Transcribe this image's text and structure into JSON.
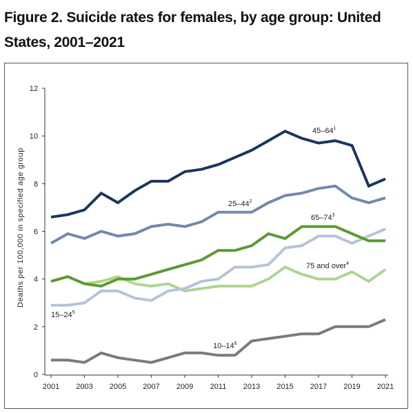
{
  "chart_data": {
    "type": "line",
    "title": "Figure 2. Suicide rates for females, by age group: United States, 2001–2021",
    "ylabel": "Deaths per 100,000 in specified age group",
    "xlabel": "",
    "xlim": [
      2001,
      2021
    ],
    "ylim": [
      0,
      12
    ],
    "x": [
      2001,
      2002,
      2003,
      2004,
      2005,
      2006,
      2007,
      2008,
      2009,
      2010,
      2011,
      2012,
      2013,
      2014,
      2015,
      2016,
      2017,
      2018,
      2019,
      2020,
      2021
    ],
    "x_ticks": [
      "2001",
      "2003",
      "2005",
      "2007",
      "2009",
      "2011",
      "2013",
      "2015",
      "2017",
      "2019",
      "2021"
    ],
    "y_ticks": [
      "0",
      "2",
      "4",
      "6",
      "8",
      "10",
      "12"
    ],
    "grid": false,
    "legend": "inline labels",
    "series": [
      {
        "name": "45–64",
        "footnote": "1",
        "color": "#1b365d",
        "values": [
          6.6,
          6.7,
          6.9,
          7.6,
          7.2,
          7.7,
          8.1,
          8.1,
          8.5,
          8.6,
          8.8,
          9.1,
          9.4,
          9.8,
          10.2,
          9.9,
          9.7,
          9.8,
          9.6,
          7.9,
          8.2
        ]
      },
      {
        "name": "25–44",
        "footnote": "2",
        "color": "#7289ab",
        "values": [
          5.5,
          5.9,
          5.7,
          6.0,
          5.8,
          5.9,
          6.2,
          6.3,
          6.2,
          6.4,
          6.8,
          6.8,
          6.8,
          7.2,
          7.5,
          7.6,
          7.8,
          7.9,
          7.4,
          7.2,
          7.4
        ]
      },
      {
        "name": "65–74",
        "footnote": "3",
        "color": "#5a9a32",
        "values": [
          3.9,
          4.1,
          3.8,
          3.7,
          4.0,
          4.0,
          4.2,
          4.4,
          4.6,
          4.8,
          5.2,
          5.2,
          5.4,
          5.9,
          5.7,
          6.2,
          6.2,
          6.2,
          5.9,
          5.6,
          5.6
        ]
      },
      {
        "name": "15–24",
        "footnote": "5",
        "color": "#b6c3d9",
        "values": [
          2.9,
          2.9,
          3.0,
          3.5,
          3.5,
          3.2,
          3.1,
          3.5,
          3.6,
          3.9,
          4.0,
          4.5,
          4.5,
          4.6,
          5.3,
          5.4,
          5.8,
          5.8,
          5.5,
          5.8,
          6.1
        ]
      },
      {
        "name": "75 and over",
        "footnote": "4",
        "color": "#aed58f",
        "values": [
          3.9,
          4.1,
          3.8,
          3.9,
          4.1,
          3.8,
          3.7,
          3.8,
          3.5,
          3.6,
          3.7,
          3.7,
          3.7,
          4.0,
          4.5,
          4.2,
          4.0,
          4.0,
          4.3,
          3.9,
          4.4
        ]
      },
      {
        "name": "10–14",
        "footnote": "6",
        "color": "#7b7b7b",
        "values": [
          0.6,
          0.6,
          0.5,
          0.9,
          0.7,
          0.6,
          0.5,
          0.7,
          0.9,
          0.9,
          0.8,
          0.8,
          1.4,
          1.5,
          1.6,
          1.7,
          1.7,
          2.0,
          2.0,
          2.0,
          2.3
        ]
      }
    ]
  }
}
